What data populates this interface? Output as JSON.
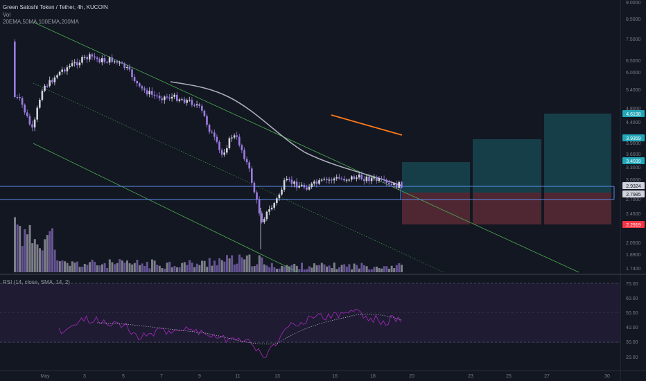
{
  "header": {
    "symbol_line": "Green Satoshi Token / Tether, 4h, KUCOIN",
    "vol_label": "Vol",
    "indicators_line": "20EMA,50MA,100EMA,200MA"
  },
  "colors": {
    "background": "#131722",
    "bull": "#d1d4dc",
    "bear": "#9c7de0",
    "channel": "#4caf50",
    "ma_gray": "#a9aeb8",
    "ma_orange": "#ff7a1a",
    "hline": "#5b8def",
    "target_zone": "#17454f",
    "stop_zone": "#5a2a35",
    "rsi": "#9c27b0",
    "rsi_bg": "#1e1b33"
  },
  "price_axis": {
    "ticks": [
      "9.0000",
      "8.5000",
      "7.5000",
      "6.5000",
      "6.0000",
      "5.4000",
      "4.8000",
      "4.4000",
      "3.9000",
      "3.6000",
      "3.3000",
      "3.0000",
      "2.7000",
      "2.4500",
      "2.0500",
      "1.8900",
      "1.7400"
    ],
    "labels": [
      {
        "text": "4.6198",
        "color": "#22a7b8"
      },
      {
        "text": "3.9359",
        "color": "#22a7b8"
      },
      {
        "text": "3.4039",
        "color": "#22a7b8"
      },
      {
        "text": "2.9324",
        "color": "#2a2e39"
      },
      {
        "text": "2.7985",
        "color": "#2a2e39"
      },
      {
        "text": "2.2919",
        "color": "#f23645"
      }
    ]
  },
  "time_axis": [
    "May",
    "3",
    "5",
    "7",
    "9",
    "11",
    "13",
    "16",
    "18",
    "20",
    "23",
    "25",
    "27",
    "30"
  ],
  "rsi": {
    "title": "RSI (14, close, SMA, 14, 2)",
    "ticks": [
      "70.00",
      "60.00",
      "50.00",
      "40.00",
      "30.00",
      "20.00"
    ]
  },
  "chart_data": {
    "type": "candlestick",
    "title": "Green Satoshi Token / Tether, 4h, KUCOIN",
    "x_ticks": [
      "May",
      "3",
      "5",
      "7",
      "9",
      "11",
      "13",
      "16",
      "18",
      "20",
      "23",
      "25",
      "27",
      "30"
    ],
    "price_labels": [
      4.6198,
      3.9359,
      3.4039,
      2.9324,
      2.7985,
      2.2919
    ],
    "horizontal_levels": [
      2.9324,
      2.7985
    ],
    "targets": [
      3.4039,
      3.9359,
      4.6198
    ],
    "stop": 2.2919,
    "rsi_levels": [
      70,
      30
    ],
    "rsi_range": [
      15,
      75
    ],
    "grid": false
  }
}
